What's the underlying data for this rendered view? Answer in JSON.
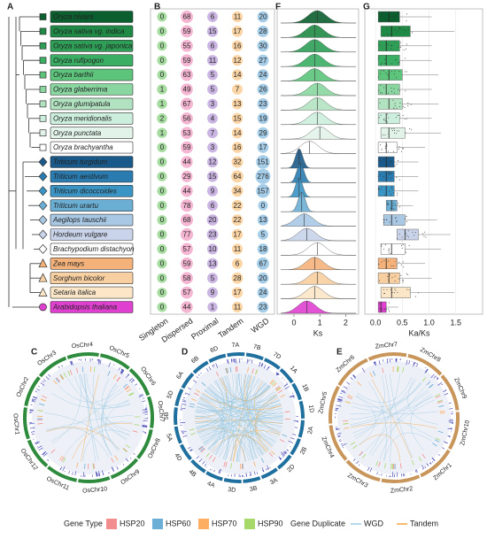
{
  "chart_data": [
    {
      "type": "tree",
      "panel": "A",
      "labels": [
        "Oryza nivara",
        "Oryza sativa vg. indica",
        "Oryza sativa vg. japonica",
        "Oryza rufipogon",
        "Oryza barthii",
        "Oryza glaberrima",
        "Oryza glumipatula",
        "Oryza meridionalis",
        "Oryza punctata",
        "Oryza brachyantha",
        "Triticum turgidum",
        "Triticum aestivum",
        "Triticum dicoccoides",
        "Triticum urartu",
        "Aegilops tauschii",
        "Hordeum vulgare",
        "Brachypodium distachyon",
        "Zea mays",
        "Sorghum bicolor",
        "Setaria italica",
        "Arabidopsis thaliana"
      ],
      "colors": [
        "#0b5e2e",
        "#1e8a45",
        "#2e9e56",
        "#3aae63",
        "#5cc47b",
        "#8ad6a0",
        "#b2e3c1",
        "#cceedd",
        "#e2f4e9",
        "#ffffff",
        "#1a5a8a",
        "#2a7cb0",
        "#3a94c4",
        "#6aaed4",
        "#a8c8e4",
        "#c9d4ea",
        "#ffffff",
        "#f4b27a",
        "#f8cfa0",
        "#fbe6c8",
        "#e040d0"
      ],
      "markers": [
        "square",
        "square",
        "square",
        "square",
        "square",
        "square",
        "square",
        "square",
        "square",
        "square",
        "diamond",
        "diamond",
        "diamond",
        "diamond",
        "diamond",
        "diamond",
        "diamond",
        "triangle",
        "triangle",
        "triangle",
        "circle"
      ]
    },
    {
      "type": "bubble",
      "panel": "B",
      "series": [
        {
          "name": "Singleton",
          "color": "#a6dba0",
          "values": [
            0,
            0,
            0,
            0,
            0,
            1,
            1,
            2,
            1,
            0,
            0,
            0,
            0,
            0,
            0,
            0,
            0,
            0,
            0,
            0,
            0
          ]
        },
        {
          "name": "Dispersed",
          "color": "#f4b6d2",
          "values": [
            68,
            59,
            55,
            59,
            63,
            49,
            67,
            56,
            53,
            59,
            44,
            29,
            44,
            78,
            68,
            77,
            57,
            59,
            58,
            57,
            44
          ]
        },
        {
          "name": "Proximal",
          "color": "#cbb5e2",
          "values": [
            6,
            15,
            6,
            11,
            5,
            5,
            3,
            4,
            7,
            3,
            12,
            15,
            9,
            6,
            20,
            23,
            10,
            13,
            5,
            9,
            1
          ]
        },
        {
          "name": "Tandem",
          "color": "#fbd5a5",
          "values": [
            11,
            17,
            16,
            12,
            14,
            7,
            13,
            15,
            14,
            16,
            32,
            64,
            34,
            22,
            22,
            17,
            11,
            6,
            28,
            17,
            11
          ]
        },
        {
          "name": "WGD",
          "color": "#a6cde8",
          "values": [
            20,
            28,
            30,
            27,
            24,
            26,
            23,
            19,
            29,
            17,
            151,
            276,
            157,
            0,
            13,
            5,
            18,
            67,
            20,
            24,
            23
          ]
        }
      ]
    },
    {
      "type": "ridgeline",
      "panel": "F",
      "xlabel": "Ks",
      "values": [
        0.9,
        0.8,
        0.8,
        0.8,
        0.8,
        0.9,
        0.9,
        0.9,
        1.0,
        0.6,
        0.2,
        0.25,
        0.2,
        0.3,
        0.4,
        0.5,
        0.9,
        0.8,
        0.9,
        0.8,
        0.5
      ],
      "xlim": [
        -0.65,
        2.5
      ],
      "xticks": [
        0,
        1,
        2
      ]
    },
    {
      "type": "box",
      "panel": "G",
      "xlabel": "Ka/Ks",
      "q1": [
        0.05,
        0.1,
        0.05,
        0.05,
        0.05,
        0.05,
        0.05,
        0.05,
        0.1,
        0.05,
        0.05,
        0.05,
        0.05,
        0.2,
        0.15,
        0.4,
        0.1,
        0.05,
        0.05,
        0.1,
        0.05
      ],
      "median": [
        0.25,
        0.3,
        0.2,
        0.2,
        0.25,
        0.2,
        0.25,
        0.2,
        0.25,
        0.2,
        0.2,
        0.2,
        0.2,
        0.3,
        0.3,
        0.55,
        0.3,
        0.2,
        0.25,
        0.3,
        0.1
      ],
      "q3": [
        0.45,
        0.65,
        0.45,
        0.45,
        0.5,
        0.45,
        0.5,
        0.45,
        0.55,
        0.4,
        0.35,
        0.35,
        0.35,
        0.4,
        0.55,
        0.8,
        0.55,
        0.4,
        0.45,
        0.65,
        0.2
      ],
      "xlim": [
        -0.2,
        2.0
      ],
      "xticks": [
        {
          "value": 0,
          "label": "0.0"
        },
        {
          "value": 0.5,
          "label": "0.5"
        },
        {
          "value": 1,
          "label": "1.0"
        },
        {
          "value": 1.5,
          "label": "1.5"
        }
      ]
    },
    {
      "type": "circos",
      "panel": "C",
      "color": "#2e8b3e",
      "labels": [
        "OsChr1",
        "OsChr2",
        "OsChr3",
        "OsChr4",
        "OsChr5",
        "OsChr6",
        "OsChr7",
        "OsChr8",
        "OsChr9",
        "OsChr10",
        "OsChr11",
        "OsChr12"
      ]
    },
    {
      "type": "circos",
      "panel": "D",
      "color": "#1f6f9f",
      "labels": [
        "1A",
        "1B",
        "1D",
        "2A",
        "2B",
        "2D",
        "3A",
        "3B",
        "3D",
        "4A",
        "4B",
        "4D",
        "5A",
        "5B",
        "5D",
        "6A",
        "6B",
        "6D",
        "7A",
        "7B",
        "7D"
      ]
    },
    {
      "type": "circos",
      "panel": "E",
      "color": "#c8955a",
      "labels": [
        "ZmChr1",
        "ZmChr2",
        "ZmChr3",
        "ZmChr4",
        "ZmChr5",
        "ZmChr6",
        "ZmChr7",
        "ZmChr8",
        "ZmChr9",
        "ZmChr10"
      ]
    },
    {
      "type": "legend",
      "groups": [
        {
          "title": "Gene Type",
          "shape": "square",
          "items": [
            {
              "name": "HSP20",
              "color": "#f28e8e"
            },
            {
              "name": "HSP60",
              "color": "#6baed6"
            },
            {
              "name": "HSP70",
              "color": "#fdae61"
            },
            {
              "name": "HSP90",
              "color": "#a6d96a"
            }
          ]
        },
        {
          "title": "Gene Duplicate",
          "shape": "line",
          "items": [
            {
              "name": "WGD",
              "color": "#9ecae1"
            },
            {
              "name": "Tandem",
              "color": "#f4a640"
            }
          ]
        }
      ]
    }
  ]
}
